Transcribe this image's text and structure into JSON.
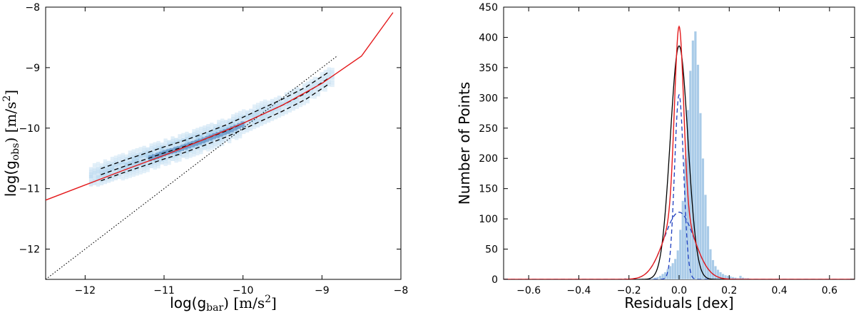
{
  "chart_data": [
    {
      "type": "scatter",
      "title": "",
      "xlabel": "log(g_bar) [m/s^2]",
      "ylabel": "log(g_obs) [m/s^2]",
      "xlabel_parts": {
        "pre": "log(g",
        "sub": "bar",
        "post": ") [m/s",
        "sup": "2",
        "end": "]"
      },
      "ylabel_parts": {
        "pre": "log(g",
        "sub": "obs",
        "post": ") [m/s",
        "sup": "2",
        "end": "]"
      },
      "xlim": [
        -12.5,
        -8
      ],
      "ylim": [
        -12.5,
        -8
      ],
      "x_ticks": [
        -12,
        -11,
        -10,
        -9,
        -8
      ],
      "x_tick_labels": [
        "−12",
        "−11",
        "−10",
        "−9",
        "−8"
      ],
      "y_ticks": [
        -12,
        -11,
        -10,
        -9,
        -8
      ],
      "y_tick_labels": [
        "−12",
        "−11",
        "−10",
        "−9",
        "−8"
      ],
      "grid": false,
      "density_color": "#a9d0ec",
      "fit_color": "#e41a1c",
      "fit_line": {
        "x": [
          -12.5,
          -12.0,
          -11.5,
          -11.0,
          -10.5,
          -10.0,
          -9.5,
          -9.0,
          -8.5,
          -8.1
        ],
        "y": [
          -11.19,
          -10.94,
          -10.69,
          -10.45,
          -10.19,
          -9.92,
          -9.62,
          -9.26,
          -8.81,
          -8.09
        ]
      },
      "bin_means": {
        "x": [
          -11.8,
          -11.5,
          -11.2,
          -11.0,
          -10.8,
          -10.5,
          -10.2,
          -10.0,
          -9.8,
          -9.5,
          -9.2,
          -8.9
        ],
        "y": [
          -10.77,
          -10.63,
          -10.5,
          -10.41,
          -10.33,
          -10.19,
          -10.04,
          -9.92,
          -9.8,
          -9.62,
          -9.42,
          -9.16
        ]
      },
      "scatter_band": 0.1,
      "one_to_one": {
        "x": [
          -12.5,
          -8.8
        ],
        "y": [
          -12.5,
          -8.8
        ]
      }
    },
    {
      "type": "bar",
      "title": "",
      "xlabel": "Residuals [dex]",
      "ylabel": "Number of Points",
      "xlim": [
        -0.7,
        0.7
      ],
      "ylim": [
        0,
        450
      ],
      "x_ticks": [
        -0.6,
        -0.4,
        -0.2,
        0.0,
        0.2,
        0.4,
        0.6
      ],
      "x_tick_labels": [
        "−0.6",
        "−0.4",
        "−0.2",
        "0.0",
        "0.2",
        "0.4",
        "0.6"
      ],
      "y_ticks": [
        0,
        50,
        100,
        150,
        200,
        250,
        300,
        350,
        400,
        450
      ],
      "y_tick_labels": [
        "0",
        "50",
        "100",
        "150",
        "200",
        "250",
        "300",
        "350",
        "400",
        "450"
      ],
      "grid": false,
      "bar_color": "#a9cbe8",
      "bin_edges_start": -0.7,
      "bin_width": 0.01,
      "counts": [
        0,
        0,
        0,
        0,
        0,
        0,
        0,
        0,
        0,
        0,
        0,
        0,
        0,
        0,
        0,
        0,
        0,
        0,
        0,
        0,
        0,
        0,
        0,
        0,
        0,
        0,
        0,
        0,
        0,
        0,
        0,
        0,
        0,
        0,
        0,
        0,
        0,
        0,
        0,
        0,
        0,
        0,
        0,
        0,
        0,
        0,
        0,
        0,
        2,
        0,
        0,
        0,
        0,
        0,
        0,
        0,
        1,
        1,
        1,
        2,
        3,
        4,
        6,
        9,
        12,
        17,
        22,
        27,
        34,
        48,
        82,
        130,
        200,
        280,
        345,
        395,
        410,
        355,
        275,
        200,
        140,
        88,
        50,
        32,
        22,
        16,
        12,
        9,
        7,
        6,
        5,
        4,
        3,
        2,
        6,
        3,
        2,
        2,
        1,
        0,
        1,
        0,
        0,
        0,
        0,
        0,
        0,
        0,
        0,
        0,
        0,
        0,
        0,
        0,
        0,
        0,
        0,
        0,
        0,
        0,
        0,
        0,
        0,
        0,
        0,
        0,
        0,
        0,
        0,
        0,
        0,
        0,
        0,
        0,
        0,
        0,
        0,
        0,
        0,
        0
      ],
      "curves": {
        "total_red": {
          "color": "#e41a1c",
          "amplitude": 418,
          "components": [
            {
              "amp": 307,
              "sigma": 0.018
            },
            {
              "amp": 111,
              "sigma": 0.06
            }
          ]
        },
        "single_black": {
          "color": "#000000",
          "amplitude": 386,
          "sigma": 0.035
        },
        "narrow_blue_dashed": {
          "color": "#1f3fbf",
          "amplitude": 305,
          "sigma": 0.018
        },
        "wide_blue_dashed": {
          "color": "#1f3fbf",
          "amplitude": 111,
          "sigma": 0.06
        }
      }
    }
  ]
}
